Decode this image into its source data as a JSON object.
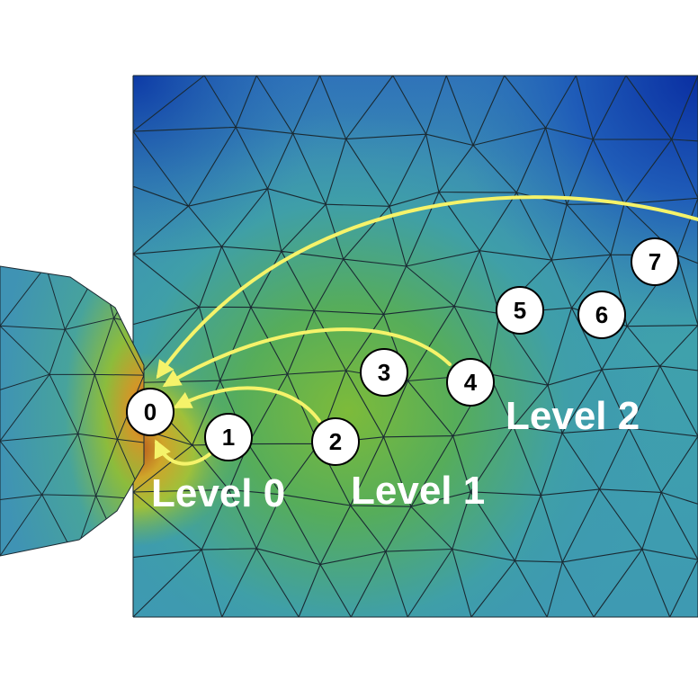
{
  "nodes": [
    {
      "id": "0",
      "label": "0"
    },
    {
      "id": "1",
      "label": "1"
    },
    {
      "id": "2",
      "label": "2"
    },
    {
      "id": "3",
      "label": "3"
    },
    {
      "id": "4",
      "label": "4"
    },
    {
      "id": "5",
      "label": "5"
    },
    {
      "id": "6",
      "label": "6"
    },
    {
      "id": "7",
      "label": "7"
    }
  ],
  "levels": [
    {
      "label": "Level 0"
    },
    {
      "label": "Level 1"
    },
    {
      "label": "Level 2"
    }
  ],
  "colors": {
    "arrow": "#f5f36a",
    "mesh_line": "#1a2a33",
    "field_low": "#0b3ea8",
    "field_mid": "#3d9fb0",
    "field_green": "#5fb34a",
    "field_hot": "#c0401a",
    "node_fill": "#ffffff",
    "node_stroke": "#000000",
    "level_text": "#ffffff"
  }
}
